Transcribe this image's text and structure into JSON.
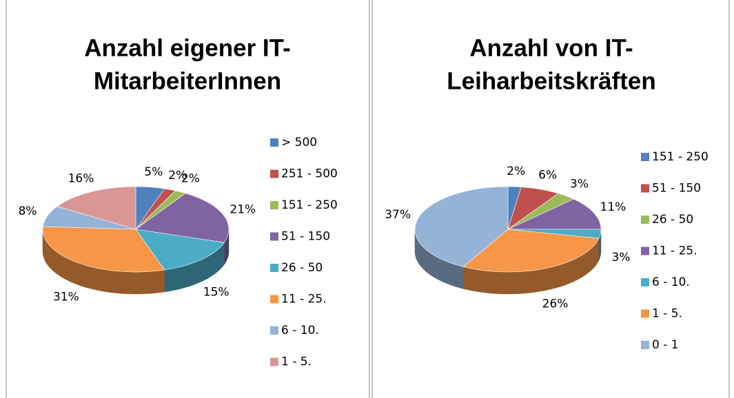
{
  "chart_data": [
    {
      "type": "pie",
      "title": [
        "Anzahl eigener IT-",
        "MitarbeiterInnen"
      ],
      "categories": [
        "> 500",
        "251 - 500",
        "151 - 250",
        "51 - 150",
        "26 - 50",
        "11 - 25.",
        "6 - 10.",
        "1 - 5."
      ],
      "values": [
        5,
        2,
        2,
        21,
        15,
        31,
        8,
        16
      ],
      "value_labels": [
        "5%",
        "2%",
        "2%",
        "21%",
        "15%",
        "31%",
        "8%",
        "16%"
      ],
      "colors": [
        "#4f81bd",
        "#c0504d",
        "#9bbb59",
        "#8064a2",
        "#4bacc6",
        "#f79646",
        "#95b3d7",
        "#d99694"
      ]
    },
    {
      "type": "pie",
      "title": [
        "Anzahl von IT-",
        "Leiharbeitskräften"
      ],
      "categories": [
        "151 - 250",
        "51 - 150",
        "26 - 50",
        "11 - 25.",
        "6 - 10.",
        "1 - 5.",
        "0 - 1"
      ],
      "values": [
        2,
        6,
        3,
        11,
        3,
        26,
        37
      ],
      "value_labels": [
        "2%",
        "6%",
        "3%",
        "11%",
        "3%",
        "26%",
        "37%"
      ],
      "colors": [
        "#4f81bd",
        "#c0504d",
        "#9bbb59",
        "#8064a2",
        "#4bacc6",
        "#f79646",
        "#95b3d7"
      ]
    }
  ]
}
